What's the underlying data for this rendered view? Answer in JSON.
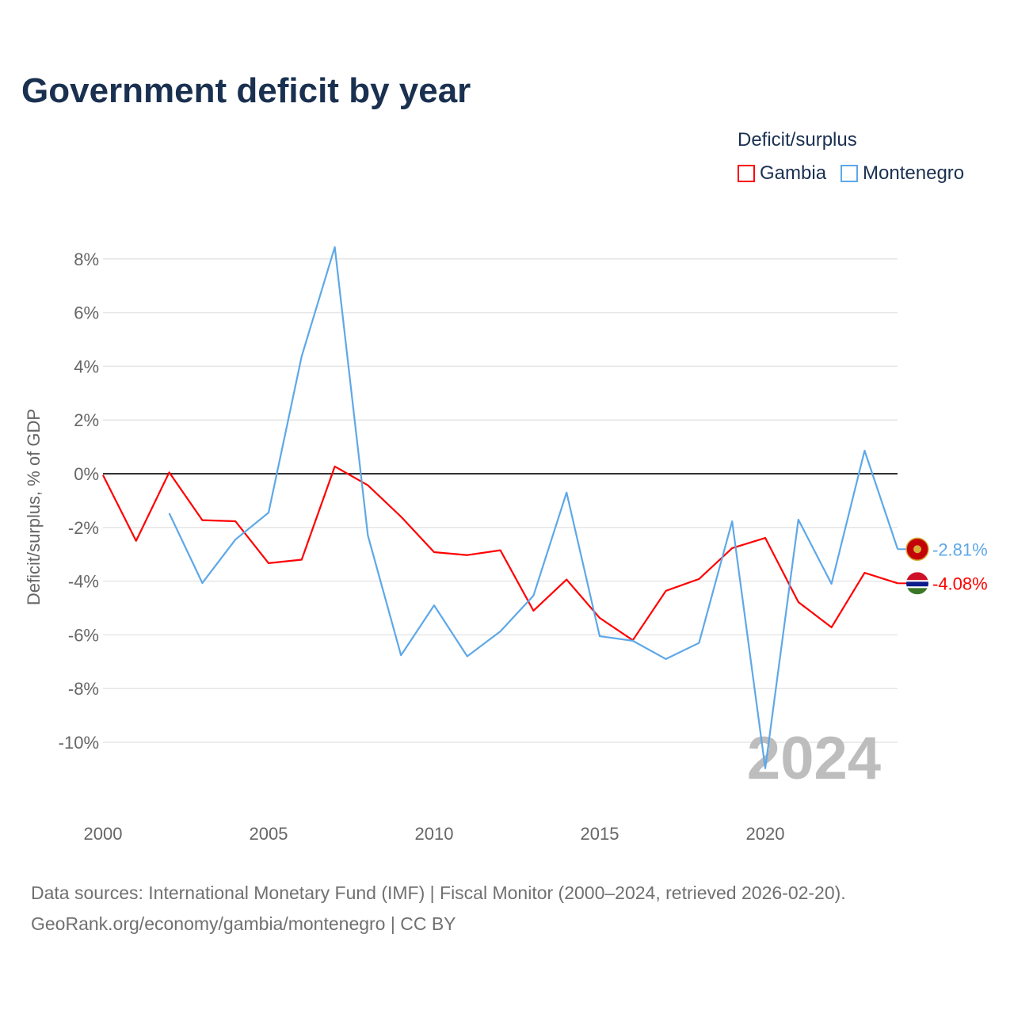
{
  "chart_data": {
    "type": "line",
    "title": "Government deficit by year",
    "xlabel": "",
    "ylabel": "Deficit/surplus, % of GDP",
    "xlim": [
      2000,
      2024
    ],
    "ylim": [
      -12,
      8.5
    ],
    "x_ticks": [
      2000,
      2005,
      2010,
      2015,
      2020
    ],
    "x_tick_labels": [
      "2000",
      "2005",
      "2010",
      "2015",
      "2020"
    ],
    "y_ticks": [
      8,
      6,
      4,
      2,
      0,
      -2,
      -4,
      -6,
      -8,
      -10
    ],
    "y_tick_labels": [
      "8%",
      "6%",
      "4%",
      "2%",
      "0%",
      "-2%",
      "-4%",
      "-6%",
      "-8%",
      "-10%"
    ],
    "grid": true,
    "legend_title": "Deficit/surplus",
    "legend_position": "top-right",
    "year_watermark": "2024",
    "series": [
      {
        "name": "Gambia",
        "color": "#ff0000",
        "end_label": "-4.08%",
        "x": [
          2000,
          2001,
          2002,
          2003,
          2004,
          2005,
          2006,
          2007,
          2008,
          2009,
          2010,
          2011,
          2012,
          2013,
          2014,
          2015,
          2016,
          2017,
          2018,
          2019,
          2020,
          2021,
          2022,
          2023,
          2024
        ],
        "values": [
          -0.05,
          -2.5,
          0.05,
          -1.73,
          -1.77,
          -3.33,
          -3.2,
          0.27,
          -0.43,
          -1.6,
          -2.92,
          -3.03,
          -2.85,
          -5.1,
          -3.94,
          -5.37,
          -6.2,
          -4.36,
          -3.92,
          -2.77,
          -2.39,
          -4.78,
          -5.72,
          -3.69,
          -4.08
        ]
      },
      {
        "name": "Montenegro",
        "color": "#5ea8e8",
        "end_label": "-2.81%",
        "x": [
          2002,
          2003,
          2004,
          2005,
          2006,
          2007,
          2008,
          2009,
          2010,
          2011,
          2012,
          2013,
          2014,
          2015,
          2016,
          2017,
          2018,
          2019,
          2020,
          2021,
          2022,
          2023,
          2024
        ],
        "values": [
          -1.47,
          -4.07,
          -2.45,
          -1.45,
          4.37,
          8.44,
          -2.3,
          -6.76,
          -4.9,
          -6.8,
          -5.87,
          -4.54,
          -0.7,
          -6.05,
          -6.22,
          -6.9,
          -6.3,
          -1.77,
          -10.97,
          -1.71,
          -4.1,
          0.86,
          -2.81
        ]
      }
    ]
  },
  "footer": {
    "line1": "Data sources: International Monetary Fund (IMF) | Fiscal Monitor (2000–2024, retrieved 2026-02-20).",
    "line2": "GeoRank.org/economy/gambia/montenegro | CC BY"
  }
}
